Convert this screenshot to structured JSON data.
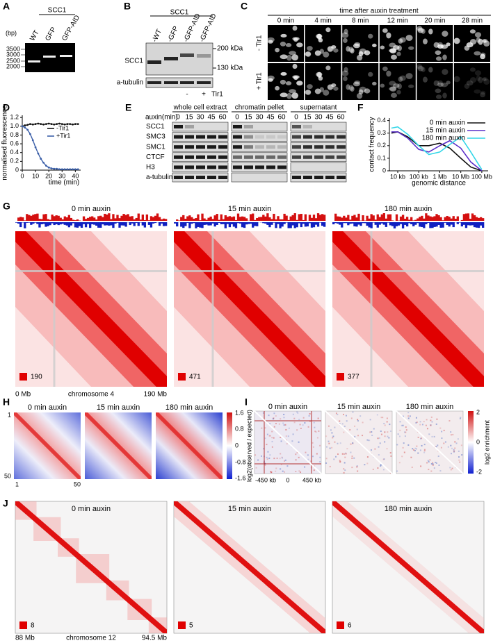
{
  "panel_labels": [
    "A",
    "B",
    "C",
    "D",
    "E",
    "F",
    "G",
    "H",
    "I",
    "J"
  ],
  "A": {
    "group": "SCC1",
    "lanes": [
      "WT",
      "GFP",
      "GFP-AID"
    ],
    "unit": "(bp)",
    "sizes": [
      "3500",
      "3000",
      "2500",
      "2000"
    ]
  },
  "B": {
    "group": "SCC1",
    "lanes": [
      "-WT",
      "-GFP",
      "-GFP-AID",
      "-GFP-AID"
    ],
    "markers": [
      "200 kDa",
      "130 kDa"
    ],
    "rows": [
      "SCC1",
      "a-tubulin"
    ],
    "tir1_states": [
      "-",
      "+"
    ],
    "tir1": "Tir1"
  },
  "C": {
    "header": "time after auxin treatment",
    "times": [
      "0 min",
      "4 min",
      "8 min",
      "12 min",
      "20 min",
      "28 min"
    ],
    "rows": [
      "- Tir1",
      "+ Tir1"
    ]
  },
  "E": {
    "treatment": "auxin(min)",
    "groups": [
      "whole cell extract",
      "chromatin pellet",
      "supernatant"
    ],
    "times": [
      "0",
      "15",
      "30",
      "45",
      "60"
    ],
    "rows": [
      "SCC1",
      "SMC3",
      "SMC1",
      "CTCF",
      "H3",
      "a-tubulin"
    ]
  },
  "G": {
    "titles": [
      "0 min auxin",
      "15 min auxin",
      "180 min auxin"
    ],
    "scale": [
      "190",
      "471",
      "377"
    ],
    "axis": [
      "0 Mb",
      "chromosome 4",
      "190 Mb"
    ]
  },
  "H": {
    "titles": [
      "0 min auxin",
      "15 min auxin",
      "180 min auxin"
    ],
    "colorbar": [
      "1.6",
      "0.8",
      "0",
      "-0.8",
      "-1.6"
    ],
    "colorbar_label": "log2(observed / expected)",
    "row_axis": [
      "1",
      "50"
    ],
    "col_axis": [
      "1",
      "50"
    ]
  },
  "I": {
    "titles": [
      "0 min auxin",
      "15 min auxin",
      "180 min auxin"
    ],
    "colorbar": [
      "2",
      "0",
      "-2"
    ],
    "colorbar_label": "log2 enrichment",
    "axis": [
      "-450 kb",
      "0",
      "450 kb"
    ]
  },
  "J": {
    "titles": [
      "0 min auxin",
      "15 min auxin",
      "180 min auxin"
    ],
    "scale": [
      "8",
      "5",
      "6"
    ],
    "axis": [
      "88 Mb",
      "chromosome 12",
      "94.5 Mb"
    ]
  },
  "chart_data": [
    {
      "type": "line",
      "xlabel": "time (min)",
      "ylabel": "normalised fluorescence",
      "x": [
        0,
        2,
        4,
        6,
        8,
        10,
        12,
        14,
        16,
        18,
        20,
        22,
        24,
        26,
        28,
        30,
        32,
        34,
        36,
        38,
        40,
        42
      ],
      "series": [
        {
          "name": "-Tir1",
          "color": "#111111",
          "values": [
            1,
            1.02,
            1.03,
            1.05,
            1.04,
            1.05,
            1.06,
            1.05,
            1.04,
            1.05,
            1.06,
            1.05,
            1.04,
            1.05,
            1.06,
            1.05,
            1.04,
            1.05,
            1.05,
            1.04,
            1.05,
            1.05
          ]
        },
        {
          "name": "+Tir1",
          "color": "#3b5fa8",
          "values": [
            1,
            0.97,
            0.92,
            0.82,
            0.68,
            0.52,
            0.38,
            0.26,
            0.17,
            0.1,
            0.06,
            0.04,
            0.03,
            0.03,
            0.02,
            0.02,
            0.02,
            0.02,
            0.02,
            0.02,
            0.02,
            0.02
          ]
        }
      ],
      "xlim": [
        0,
        44
      ],
      "ylim": [
        0,
        1.25
      ],
      "xticks": [
        0,
        10,
        20,
        30,
        40
      ],
      "yticks": [
        0,
        0.2,
        0.4,
        0.6,
        0.8,
        {
          "value": 1,
          "label": "1.0"
        },
        1.2
      ],
      "legend": "upper right"
    },
    {
      "type": "line",
      "xlabel": "genomic distance",
      "ylabel": "contact frequency",
      "log_x": true,
      "x": [
        5000,
        10000,
        30000,
        100000,
        300000,
        1000000,
        3000000,
        10000000,
        30000000,
        100000000
      ],
      "series": [
        {
          "name": "0 min auxin",
          "color": "#111111",
          "values": [
            0.3,
            0.31,
            0.27,
            0.2,
            0.2,
            0.22,
            0.18,
            0.1,
            0.03,
            0
          ]
        },
        {
          "name": "15 min auxin",
          "color": "#5a2ec8",
          "values": [
            0.31,
            0.31,
            0.26,
            0.17,
            0.15,
            0.2,
            0.24,
            0.18,
            0.07,
            0
          ]
        },
        {
          "name": "180 min auxin",
          "color": "#33d6e8",
          "values": [
            0.34,
            0.35,
            0.29,
            0.2,
            0.13,
            0.15,
            0.21,
            0.27,
            0.15,
            0.01
          ]
        }
      ],
      "xlim": [
        4000,
        200000000
      ],
      "ylim": [
        0,
        0.42
      ],
      "xticks": [
        {
          "value": 10000,
          "label": "10 kb"
        },
        {
          "value": 100000,
          "label": "100 kb"
        },
        {
          "value": 1000000,
          "label": "1 Mb"
        },
        {
          "value": 10000000,
          "label": "10 Mb"
        },
        {
          "value": 100000000,
          "label": "100 Mb"
        }
      ],
      "yticks": [
        0,
        0.1,
        0.2,
        0.3,
        0.4
      ],
      "legend": "upper right"
    }
  ]
}
